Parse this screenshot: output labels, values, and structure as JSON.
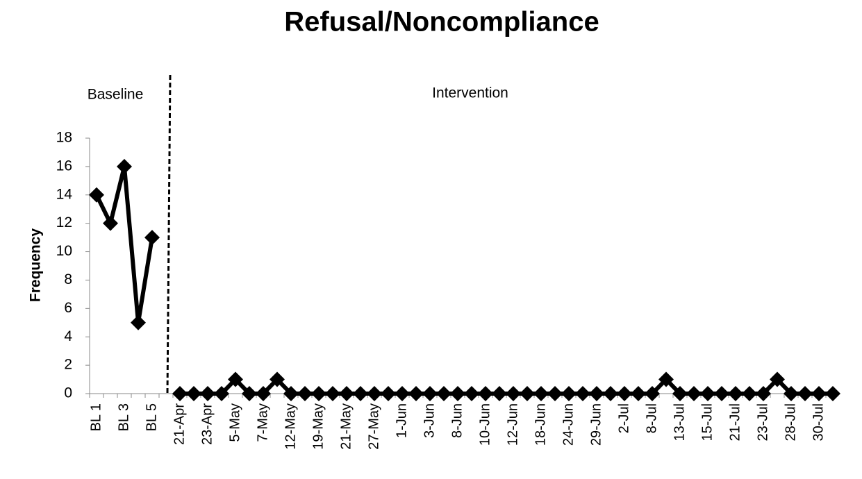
{
  "chart_data": {
    "type": "line",
    "title": "Refusal/Noncompliance",
    "y_label": "Frequency",
    "phases": [
      "Baseline",
      "Intervention"
    ],
    "categories": [
      "BL 1",
      null,
      "BL 3",
      null,
      "BL 5",
      null,
      "21-Apr",
      null,
      "23-Apr",
      null,
      "5-May",
      null,
      "7-May",
      null,
      "12-May",
      null,
      "19-May",
      null,
      "21-May",
      null,
      "27-May",
      null,
      "1-Jun",
      null,
      "3-Jun",
      null,
      "8-Jun",
      null,
      "10-Jun",
      null,
      "12-Jun",
      null,
      "18-Jun",
      null,
      "24-Jun",
      null,
      "29-Jun",
      null,
      "2-Jul",
      null,
      "8-Jul",
      null,
      "13-Jul",
      null,
      "15-Jul",
      null,
      "21-Jul",
      null,
      "23-Jul",
      null,
      "28-Jul",
      null,
      "30-Jul",
      null
    ],
    "series": [
      {
        "color": "#000000",
        "values": [
          14,
          12,
          16,
          5,
          11,
          null,
          0,
          0,
          0,
          0,
          1,
          0,
          0,
          1,
          0,
          0,
          0,
          0,
          0,
          0,
          0,
          0,
          0,
          0,
          0,
          0,
          0,
          0,
          0,
          0,
          0,
          0,
          0,
          0,
          0,
          0,
          0,
          0,
          0,
          0,
          0,
          1,
          0,
          0,
          0,
          0,
          0,
          0,
          0,
          1,
          0,
          0,
          0,
          0
        ]
      }
    ],
    "ylim": [
      0,
      18
    ],
    "yticks": [
      0,
      2,
      4,
      6,
      8,
      10,
      12,
      14,
      16,
      18
    ],
    "grid": false
  }
}
